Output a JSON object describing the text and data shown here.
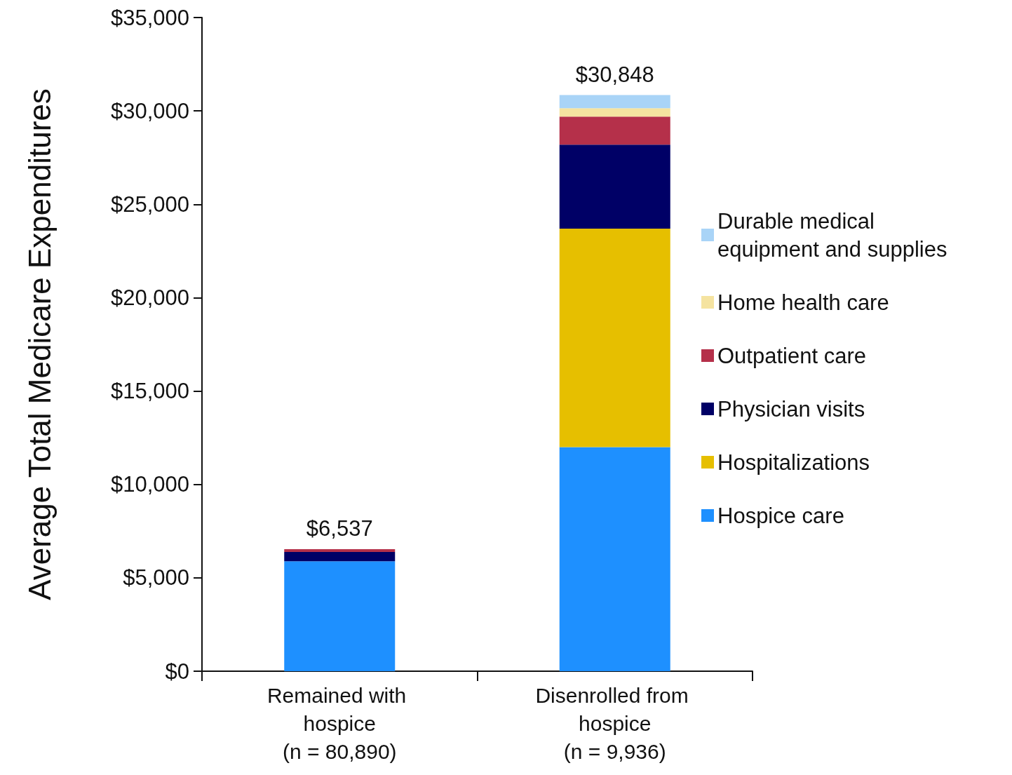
{
  "chart_data": {
    "type": "bar",
    "stacked": true,
    "ylabel": "Average Total Medicare Expenditures",
    "categories": [
      "Remained with hospice (n = 80,890)",
      "Disenrolled from hospice (n = 9,936)"
    ],
    "series": [
      {
        "name": "Hospice care",
        "color": "#1e90ff",
        "values": [
          5887,
          11998
        ]
      },
      {
        "name": "Hospitalizations",
        "color": "#e6bf00",
        "values": [
          0,
          11700
        ]
      },
      {
        "name": "Physician visits",
        "color": "#000066",
        "values": [
          500,
          4500
        ]
      },
      {
        "name": "Outpatient care",
        "color": "#b5304a",
        "values": [
          150,
          1500
        ]
      },
      {
        "name": "Home health care",
        "color": "#f5e3a0",
        "values": [
          0,
          450
        ]
      },
      {
        "name": "Durable medical equipment and supplies",
        "color": "#a9d4f7",
        "values": [
          0,
          700
        ]
      }
    ],
    "totals": [
      "$6,537",
      "$30,848"
    ],
    "ylim": [
      0,
      35000
    ],
    "yticks": [
      {
        "value": 0,
        "label": "$0"
      },
      {
        "value": 5000,
        "label": "$5,000"
      },
      {
        "value": 10000,
        "label": "$10,000"
      },
      {
        "value": 15000,
        "label": "$15,000"
      },
      {
        "value": 20000,
        "label": "$20,000"
      },
      {
        "value": 25000,
        "label": "$25,000"
      },
      {
        "value": 30000,
        "label": "$30,000"
      },
      {
        "value": 35000,
        "label": "$35,000"
      }
    ],
    "grid": false,
    "legend": "right"
  }
}
